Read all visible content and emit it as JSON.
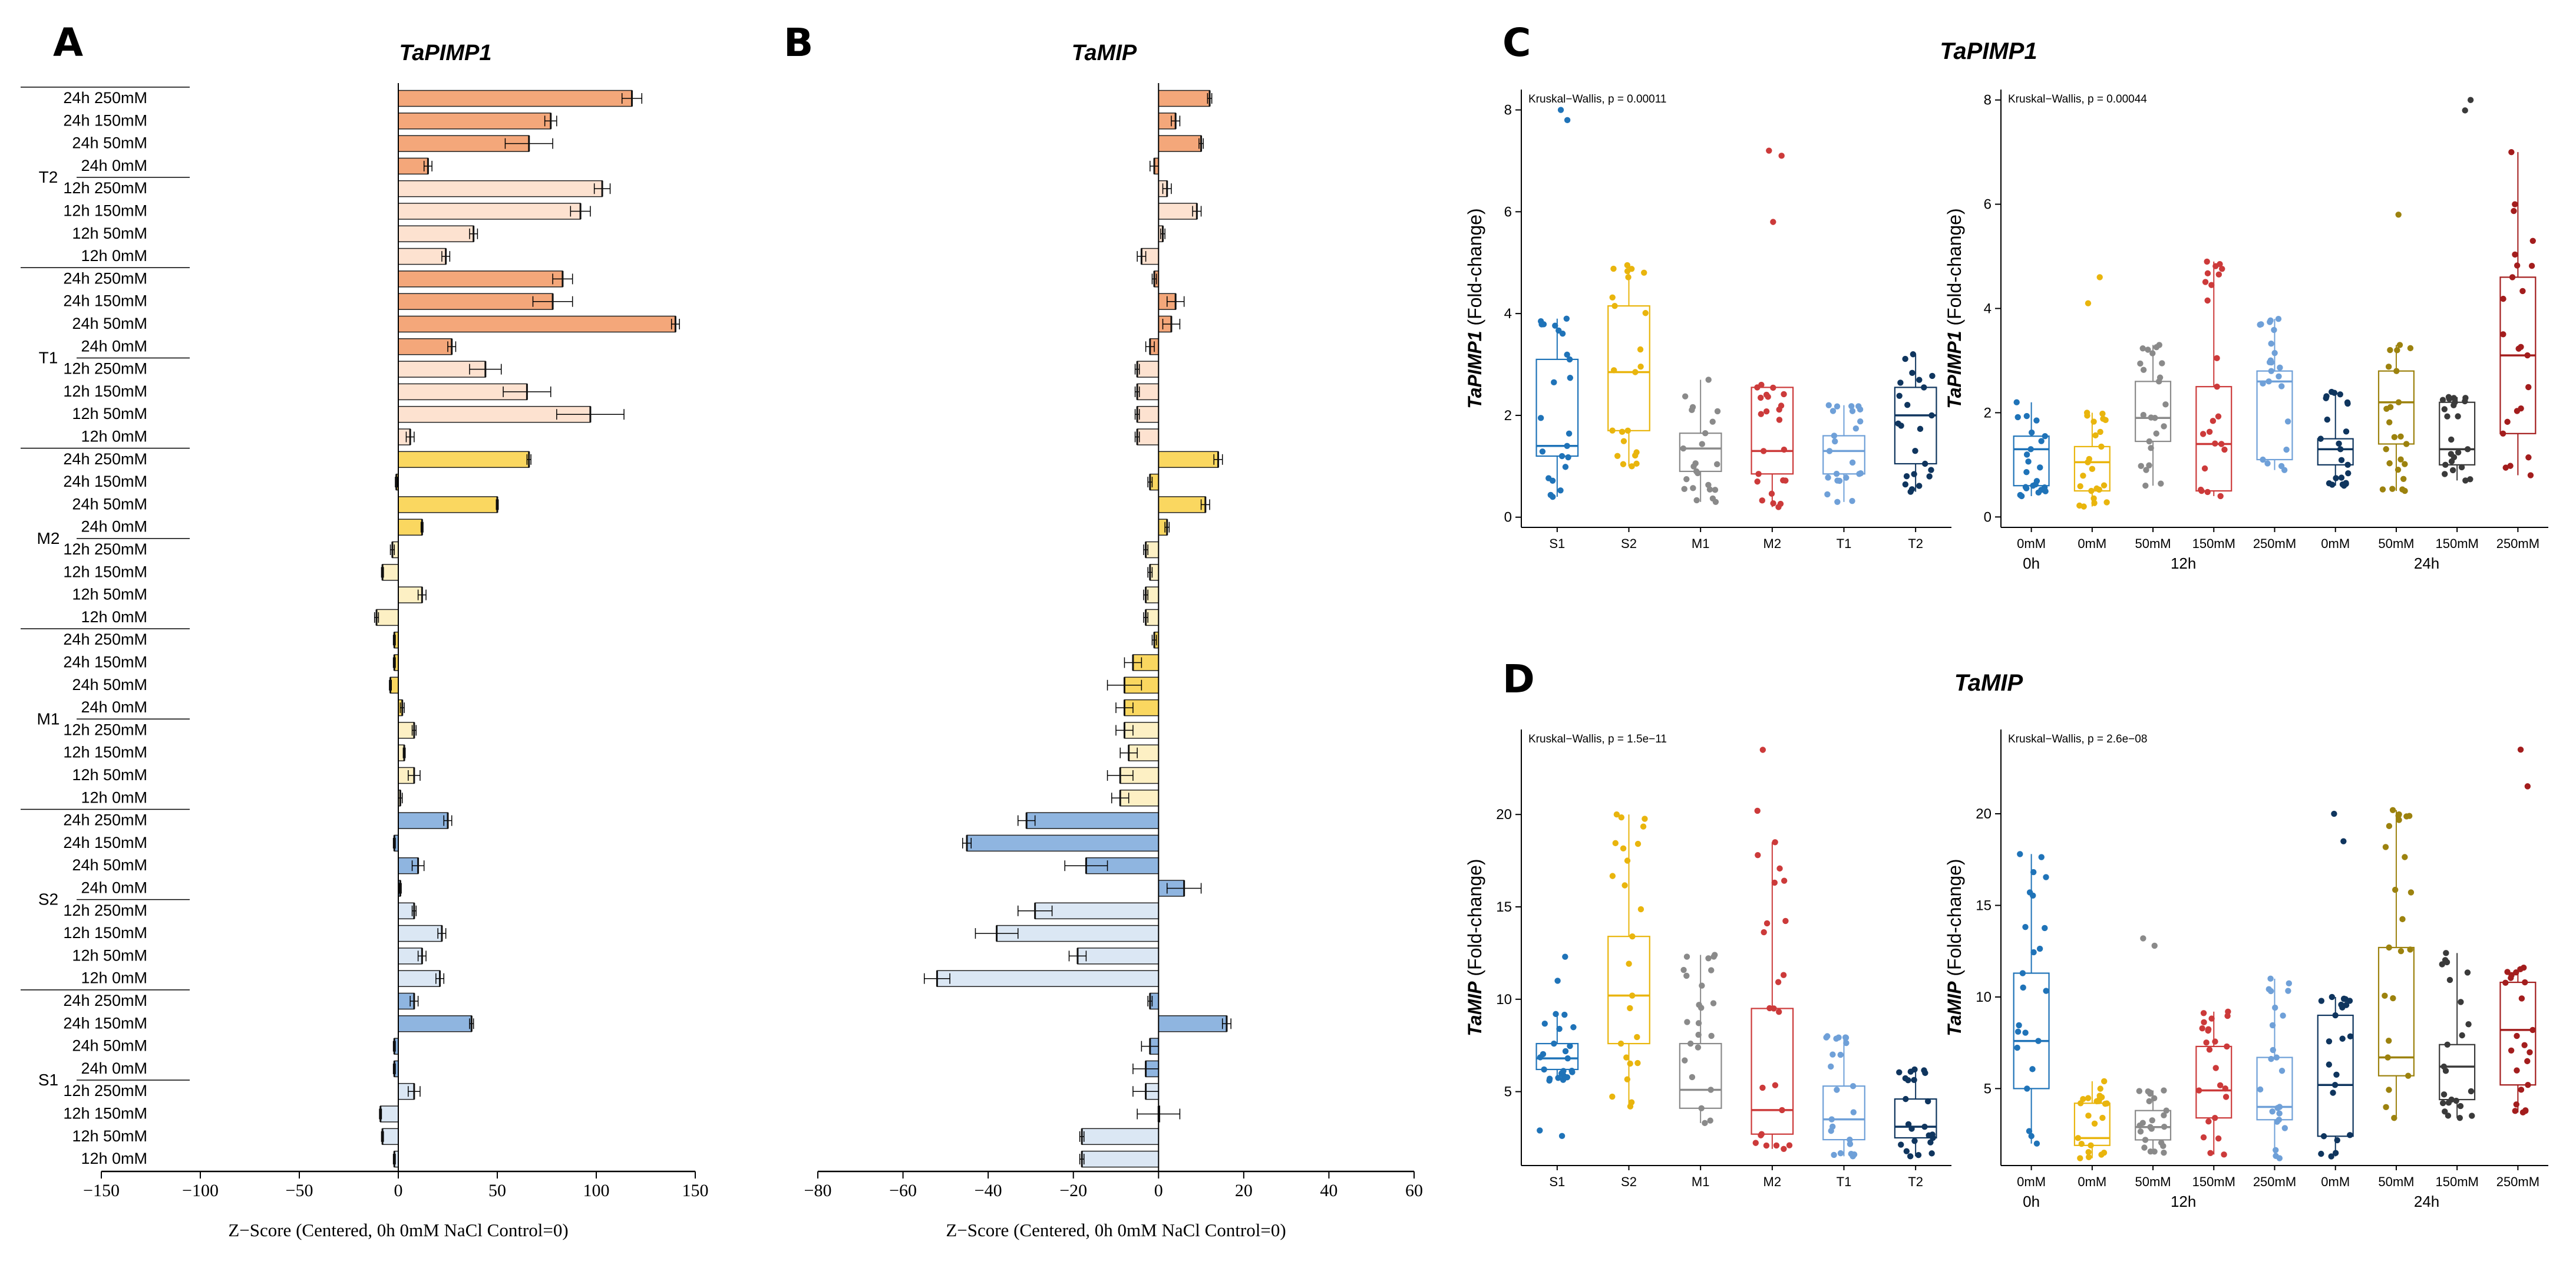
{
  "panel_letters": [
    "A",
    "B",
    "C",
    "D"
  ],
  "colors": {
    "orange_dark": "#f4a77a",
    "orange_light": "#fde2d0",
    "yellow_dark": "#fad760",
    "yellow_light": "#fdf0c4",
    "blue_dark": "#8fb5e0",
    "blue_light": "#dbe7f4",
    "S1": "#1f73b8",
    "S2": "#e9b50d",
    "M1": "#8a8a8a",
    "M2": "#cc3a3a",
    "T1": "#6fa0d8",
    "T2": "#0f355e",
    "tr_0h": "#1f73b8",
    "tr_12h_0": "#e9b50d",
    "tr_12h_50": "#8a8a8a",
    "tr_12h_150": "#cc3a3a",
    "tr_12h_250": "#6fa0d8",
    "tr_24h_0": "#0f355e",
    "tr_24h_50": "#9c820e",
    "tr_24h_150": "#3a3a3a",
    "tr_24h_250": "#a31d1d"
  },
  "chart_data": [
    {
      "id": "A",
      "type": "bar",
      "orientation": "horizontal",
      "title": "TaPIMP1",
      "xlabel": "Z−Score (Centered, 0h 0mM NaCl Control=0)",
      "xlim": [
        -150,
        150
      ],
      "xticks": [
        -150,
        -100,
        -50,
        0,
        50,
        100,
        150
      ],
      "groups": [
        "T2",
        "T1",
        "M2",
        "M1",
        "S2",
        "S1"
      ],
      "conditions": [
        "24h 250mM",
        "24h 150mM",
        "24h 50mM",
        "24h 0mM",
        "12h 250mM",
        "12h 150mM",
        "12h 50mM",
        "12h 0mM"
      ],
      "values": [
        [
          118,
          77,
          66,
          15,
          103,
          92,
          38,
          24
        ],
        [
          83,
          78,
          140,
          27,
          44,
          65,
          97,
          6
        ],
        [
          66,
          -1,
          50,
          12,
          -3,
          -8,
          12,
          -11
        ],
        [
          -2,
          -2,
          -4,
          2,
          8,
          3,
          8,
          1
        ],
        [
          25,
          -2,
          10,
          1,
          8,
          22,
          12,
          21
        ],
        [
          8,
          37,
          -2,
          -2,
          8,
          -9,
          -8,
          -2
        ]
      ],
      "errors": [
        [
          5,
          3,
          12,
          2,
          4,
          5,
          2,
          2
        ],
        [
          5,
          10,
          2,
          2,
          8,
          12,
          17,
          2
        ],
        [
          1,
          0.5,
          0.5,
          0.5,
          1,
          0.5,
          2,
          1
        ],
        [
          0.5,
          0.5,
          0.5,
          1,
          1,
          0.5,
          3,
          1
        ],
        [
          2,
          0.5,
          3,
          0.5,
          1,
          2,
          2,
          2
        ],
        [
          2,
          1,
          0.5,
          0.5,
          3,
          0.5,
          0.5,
          0.5
        ]
      ]
    },
    {
      "id": "B",
      "type": "bar",
      "orientation": "horizontal",
      "title": "TaMIP",
      "xlabel": "Z−Score (Centered, 0h 0mM NaCl Control=0)",
      "xlim": [
        -80,
        60
      ],
      "xticks": [
        -80,
        -60,
        -40,
        -20,
        0,
        20,
        40,
        60
      ],
      "values": [
        [
          12,
          4,
          10,
          -1,
          2,
          9,
          1,
          -4
        ],
        [
          -1,
          4,
          3,
          -2,
          -5,
          -5,
          -5,
          -5
        ],
        [
          14,
          -2,
          11,
          2,
          -3,
          -2,
          -3,
          -3
        ],
        [
          -1,
          -6,
          -8,
          -8,
          -8,
          -7,
          -9,
          -9
        ],
        [
          -31,
          -45,
          -17,
          6,
          -29,
          -38,
          -19,
          -52
        ],
        [
          -2,
          16,
          -2,
          -3,
          -3,
          0,
          -18,
          -18
        ]
      ],
      "errors": [
        [
          0.5,
          1,
          0.5,
          1,
          1,
          1,
          0.5,
          1
        ],
        [
          0.5,
          2,
          2,
          1,
          0.5,
          0.5,
          0.5,
          0.5
        ],
        [
          1,
          0.5,
          1,
          0.5,
          0.5,
          0.5,
          0.5,
          0.5
        ],
        [
          0.5,
          2,
          4,
          2,
          2,
          2,
          3,
          2
        ],
        [
          2,
          1,
          5,
          4,
          4,
          5,
          2,
          3
        ],
        [
          0.5,
          1,
          2,
          3,
          3,
          5,
          0.5,
          0.5
        ]
      ]
    },
    {
      "id": "C-left",
      "type": "box",
      "title": "TaPIMP1",
      "ylabel": "TaPIMP1",
      "ylabel_suffix": " (Fold-change)",
      "annotation": "Kruskal−Wallis, p = 0.00011",
      "ylim": [
        -0.2,
        8.4
      ],
      "yticks": [
        0,
        2,
        4,
        6,
        8
      ],
      "categories": [
        "S1",
        "S2",
        "M1",
        "M2",
        "T1",
        "T2"
      ],
      "boxes": [
        {
          "q1": 1.2,
          "median": 1.4,
          "q3": 3.1,
          "lo": 0.4,
          "hi": 3.9
        },
        {
          "q1": 1.7,
          "median": 2.85,
          "q3": 4.15,
          "lo": 1.0,
          "hi": 4.95
        },
        {
          "q1": 0.9,
          "median": 1.35,
          "q3": 1.65,
          "lo": 0.3,
          "hi": 2.7
        },
        {
          "q1": 0.85,
          "median": 1.3,
          "q3": 2.55,
          "lo": 0.2,
          "hi": 2.6
        },
        {
          "q1": 0.85,
          "median": 1.3,
          "q3": 1.6,
          "lo": 0.3,
          "hi": 2.2
        },
        {
          "q1": 1.05,
          "median": 2.0,
          "q3": 2.55,
          "lo": 0.5,
          "hi": 3.2
        }
      ],
      "outliers": [
        [
          7.8,
          8.0
        ],
        [],
        [],
        [
          5.8,
          7.1,
          7.2
        ],
        [],
        []
      ]
    },
    {
      "id": "C-right",
      "type": "box",
      "ylabel": "TaPIMP1",
      "ylabel_suffix": " (Fold-change)",
      "annotation": "Kruskal−Wallis, p = 0.00044",
      "ylim": [
        -0.2,
        8.2
      ],
      "yticks": [
        0,
        2,
        4,
        6,
        8
      ],
      "categories": [
        "0mM",
        "0mM",
        "50mM",
        "150mM",
        "250mM",
        "0mM",
        "50mM",
        "150mM",
        "250mM"
      ],
      "time_labels": [
        "0h",
        "12h",
        "24h"
      ],
      "boxes": [
        {
          "q1": 0.6,
          "median": 1.3,
          "q3": 1.55,
          "lo": 0.4,
          "hi": 2.2
        },
        {
          "q1": 0.5,
          "median": 1.05,
          "q3": 1.35,
          "lo": 0.2,
          "hi": 2.0
        },
        {
          "q1": 1.45,
          "median": 1.9,
          "q3": 2.6,
          "lo": 0.6,
          "hi": 3.3
        },
        {
          "q1": 0.5,
          "median": 1.4,
          "q3": 2.5,
          "lo": 0.4,
          "hi": 4.9
        },
        {
          "q1": 1.1,
          "median": 2.6,
          "q3": 2.8,
          "lo": 0.9,
          "hi": 3.8
        },
        {
          "q1": 1.0,
          "median": 1.3,
          "q3": 1.5,
          "lo": 0.6,
          "hi": 2.4
        },
        {
          "q1": 1.4,
          "median": 2.2,
          "q3": 2.8,
          "lo": 0.5,
          "hi": 3.3
        },
        {
          "q1": 1.0,
          "median": 1.3,
          "q3": 2.2,
          "lo": 0.7,
          "hi": 2.3
        },
        {
          "q1": 1.6,
          "median": 3.1,
          "q3": 4.6,
          "lo": 0.8,
          "hi": 7.0
        }
      ],
      "outliers": [
        [],
        [
          4.1,
          4.6
        ],
        [],
        [],
        [],
        [],
        [
          5.8
        ],
        [
          7.8,
          8.0
        ],
        []
      ]
    },
    {
      "id": "D-left",
      "type": "box",
      "title": "TaMIP",
      "ylabel": "TaMIP",
      "ylabel_suffix": " (Fold-change)",
      "annotation": "Kruskal−Wallis, p = 1.5e−11",
      "ylim": [
        1,
        24.6
      ],
      "yticks": [
        5,
        10,
        15,
        20
      ],
      "categories": [
        "S1",
        "S2",
        "M1",
        "M2",
        "T1",
        "T2"
      ],
      "boxes": [
        {
          "q1": 6.2,
          "median": 6.8,
          "q3": 7.6,
          "lo": 5.6,
          "hi": 9.2
        },
        {
          "q1": 7.6,
          "median": 10.2,
          "q3": 13.4,
          "lo": 4.2,
          "hi": 20.0
        },
        {
          "q1": 4.1,
          "median": 5.1,
          "q3": 7.6,
          "lo": 3.3,
          "hi": 12.4
        },
        {
          "q1": 2.7,
          "median": 4.0,
          "q3": 9.5,
          "lo": 1.9,
          "hi": 18.5
        },
        {
          "q1": 2.4,
          "median": 3.5,
          "q3": 5.3,
          "lo": 1.5,
          "hi": 8.0
        },
        {
          "q1": 2.5,
          "median": 3.1,
          "q3": 4.6,
          "lo": 1.5,
          "hi": 6.2
        }
      ],
      "outliers": [
        [
          2.6,
          2.9,
          11.0,
          12.3
        ],
        [
          17.5
        ],
        [],
        [
          20.2,
          23.5
        ],
        [],
        []
      ]
    },
    {
      "id": "D-right",
      "type": "box",
      "ylabel": "TaMIP",
      "ylabel_suffix": " (Fold-change)",
      "annotation": "Kruskal−Wallis, p = 2.6e−08",
      "ylim": [
        0.8,
        24.6
      ],
      "yticks": [
        5,
        10,
        15,
        20
      ],
      "categories": [
        "0mM",
        "0mM",
        "50mM",
        "150mM",
        "250mM",
        "0mM",
        "50mM",
        "150mM",
        "250mM"
      ],
      "time_labels": [
        "0h",
        "12h",
        "24h"
      ],
      "boxes": [
        {
          "q1": 5.0,
          "median": 7.6,
          "q3": 11.3,
          "lo": 2.0,
          "hi": 17.8
        },
        {
          "q1": 1.9,
          "median": 2.3,
          "q3": 4.2,
          "lo": 1.2,
          "hi": 5.4
        },
        {
          "q1": 2.2,
          "median": 2.9,
          "q3": 3.8,
          "lo": 1.5,
          "hi": 4.9
        },
        {
          "q1": 3.4,
          "median": 4.9,
          "q3": 7.3,
          "lo": 1.4,
          "hi": 9.2
        },
        {
          "q1": 3.3,
          "median": 4.0,
          "q3": 6.7,
          "lo": 1.2,
          "hi": 11.0
        },
        {
          "q1": 2.4,
          "median": 5.2,
          "q3": 9.0,
          "lo": 1.3,
          "hi": 10.0
        },
        {
          "q1": 5.7,
          "median": 6.7,
          "q3": 12.7,
          "lo": 3.4,
          "hi": 20.2
        },
        {
          "q1": 4.4,
          "median": 6.2,
          "q3": 7.4,
          "lo": 3.4,
          "hi": 12.4
        },
        {
          "q1": 5.2,
          "median": 8.2,
          "q3": 10.8,
          "lo": 3.7,
          "hi": 11.6
        }
      ],
      "outliers": [
        [],
        [],
        [
          12.8,
          13.2
        ],
        [],
        [],
        [
          18.5,
          20.0
        ],
        [],
        [],
        [
          21.5,
          23.5
        ]
      ]
    }
  ]
}
